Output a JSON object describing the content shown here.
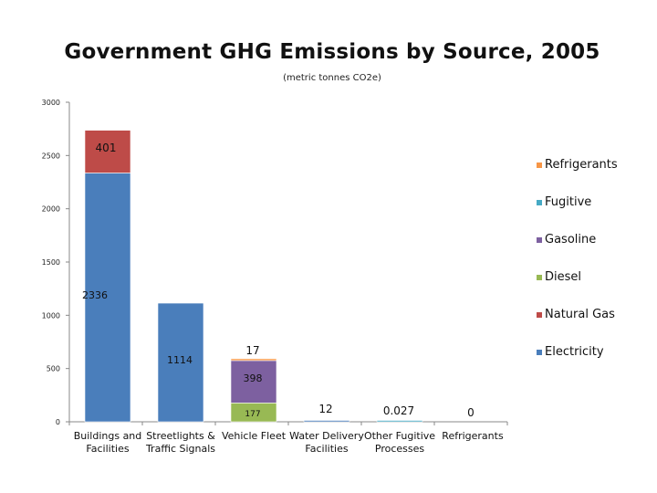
{
  "chart_data": {
    "type": "bar",
    "stacked": true,
    "title": "Government GHG Emissions by Source, 2005",
    "subtitle": "(metric tonnes CO2e)",
    "xlabel": "",
    "ylabel": "",
    "ylim": [
      0,
      3000
    ],
    "yticks": [
      0,
      500,
      1000,
      1500,
      2000,
      2500,
      3000
    ],
    "grid": false,
    "legend_position": "right",
    "categories": [
      "Buildings and Facilities",
      "Streetlights & Traffic Signals",
      "Vehicle Fleet",
      "Water Delivery Facilities",
      "Other Fugitive Processes",
      "Refrigerants"
    ],
    "series": [
      {
        "name": "Electricity",
        "color": "#4a7ebb",
        "values": [
          2336,
          1114,
          0,
          12,
          0,
          0
        ],
        "labels": [
          "2336",
          "1114",
          null,
          "12",
          null,
          null
        ]
      },
      {
        "name": "Natural Gas",
        "color": "#be4b48",
        "values": [
          401,
          0,
          0,
          0,
          0,
          0
        ],
        "labels": [
          "401",
          null,
          null,
          null,
          null,
          null
        ]
      },
      {
        "name": "Diesel",
        "color": "#98b954",
        "values": [
          0,
          0,
          177,
          0,
          0,
          0
        ],
        "labels": [
          null,
          null,
          "177",
          null,
          null,
          null
        ]
      },
      {
        "name": "Gasoline",
        "color": "#7d60a0",
        "values": [
          0,
          0,
          398,
          0,
          0,
          0
        ],
        "labels": [
          null,
          null,
          "398",
          null,
          null,
          null
        ]
      },
      {
        "name": "Fugitive",
        "color": "#46aac5",
        "values": [
          0,
          0,
          0,
          0,
          0.027,
          0
        ],
        "labels": [
          null,
          null,
          null,
          null,
          "0.027",
          null
        ]
      },
      {
        "name": "Refrigerants",
        "color": "#f79646",
        "values": [
          0,
          0,
          17,
          0,
          0,
          0
        ],
        "labels": [
          null,
          null,
          "17",
          null,
          null,
          "0"
        ]
      }
    ],
    "legend": [
      "Refrigerants",
      "Fugitive",
      "Gasoline",
      "Diesel",
      "Natural Gas",
      "Electricity"
    ],
    "category_labels": [
      [
        "Buildings and",
        "Facilities"
      ],
      [
        "Streetlights &",
        "Traffic Signals"
      ],
      [
        "Vehicle Fleet"
      ],
      [
        "Water Delivery",
        "Facilities"
      ],
      [
        "Other Fugitive",
        "Processes"
      ],
      [
        "Refrigerants"
      ]
    ]
  }
}
